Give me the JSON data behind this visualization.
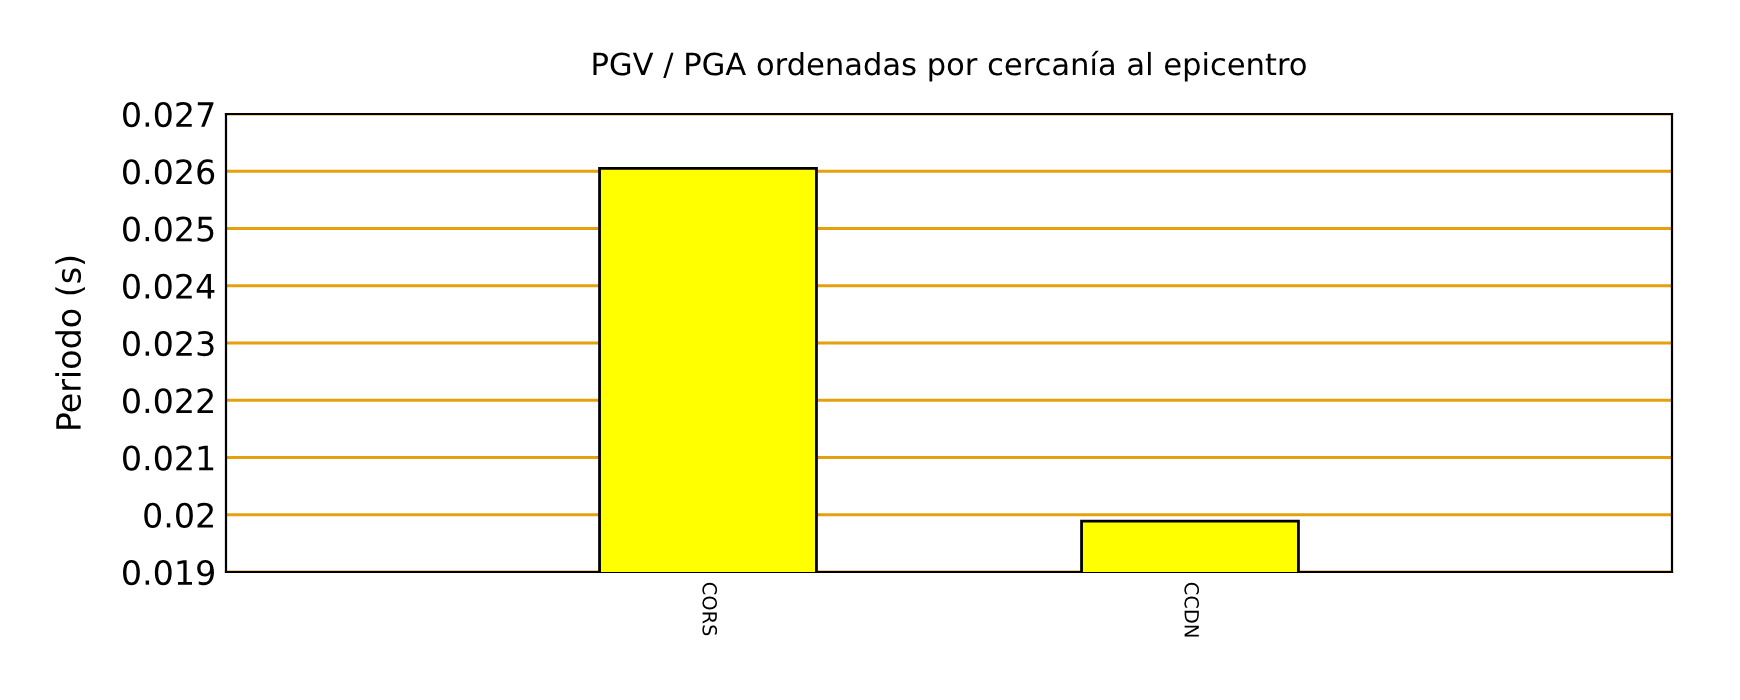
{
  "chart_data": {
    "type": "bar",
    "title": "PGV / PGA ordenadas por cercanía al epicentro",
    "ylabel": "Periodo (s)",
    "categories": [
      "CORS",
      "CCDN"
    ],
    "values": [
      0.02605,
      0.01989
    ],
    "color": "#ffff00",
    "ylim": [
      0.019,
      0.027
    ],
    "yticks": [
      0.019,
      0.02,
      0.021,
      0.022,
      0.023,
      0.024,
      0.025,
      0.026,
      0.027
    ],
    "grid": "y",
    "legend": false
  }
}
